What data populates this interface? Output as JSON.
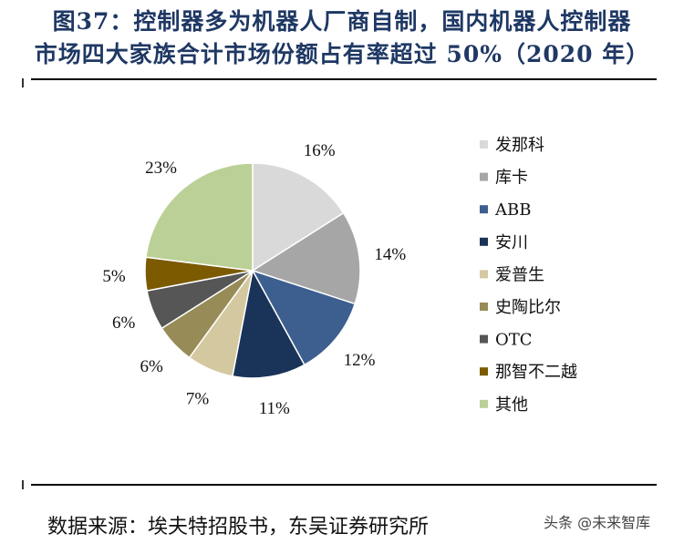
{
  "title": {
    "line1": "图37：控制器多为机器人厂商自制，国内机器人控制器",
    "line2": "市场四大家族合计市场份额占有率超过 50%（2020 年）"
  },
  "chart_data": {
    "type": "pie",
    "categories": [
      "发那科",
      "库卡",
      "ABB",
      "安川",
      "爱普生",
      "史陶比尔",
      "OTC",
      "那智不二越",
      "其他"
    ],
    "values": [
      16,
      14,
      12,
      11,
      7,
      6,
      6,
      5,
      23
    ],
    "labels": [
      "16%",
      "14%",
      "12%",
      "11%",
      "7%",
      "6%",
      "6%",
      "5%",
      "23%"
    ],
    "colors": [
      "#d9d9d9",
      "#a6a6a6",
      "#3d5f90",
      "#1a3358",
      "#d4c8a0",
      "#978b57",
      "#565656",
      "#7b5a00",
      "#bbd096"
    ],
    "legend_position": "right"
  },
  "source": "数据来源：埃夫特招股书，东吴证券研究所",
  "watermark": "头条 @未来智库"
}
